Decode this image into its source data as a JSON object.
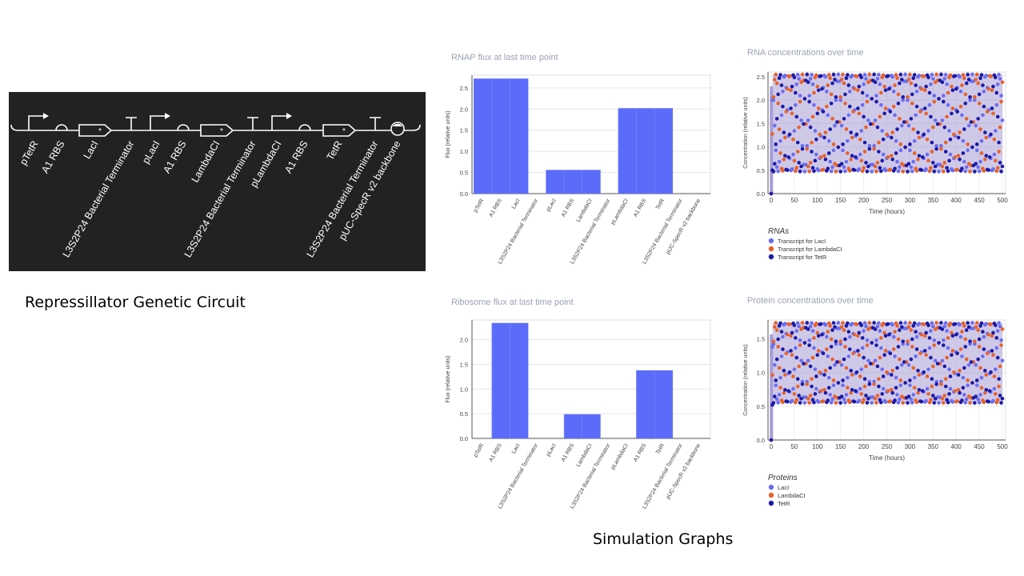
{
  "captions": {
    "circuit": "Repressillator Genetic Circuit",
    "graphs": "Simulation Graphs"
  },
  "circuit": {
    "parts": [
      {
        "type": "promoter",
        "label": "pTetR"
      },
      {
        "type": "rbs",
        "label": "A1 RBS"
      },
      {
        "type": "cds",
        "label": "LacI"
      },
      {
        "type": "terminator",
        "label": "L3S2P24 Bacterial Terminator"
      },
      {
        "type": "promoter",
        "label": "pLacI"
      },
      {
        "type": "rbs",
        "label": "A1 RBS"
      },
      {
        "type": "cds",
        "label": "LambdaCI"
      },
      {
        "type": "terminator",
        "label": "L3S2P24 Bacterial Terminator"
      },
      {
        "type": "promoter",
        "label": "pLambdaCI"
      },
      {
        "type": "rbs",
        "label": "A1 RBS"
      },
      {
        "type": "cds",
        "label": "TetR"
      },
      {
        "type": "terminator",
        "label": "L3S2P24 Bacterial Terminator"
      },
      {
        "type": "origin",
        "label": "pUC-SpecR v2 backbone"
      }
    ],
    "colors": {
      "background": "#222222",
      "glyph": "#ffffff",
      "label": "#ffffff"
    }
  },
  "colors": {
    "bar": "#5c6cfa",
    "laci": "#6a6ef0",
    "lambdaci": "#e8622a",
    "tetr": "#1a1aa8",
    "title": "#9aa3b5",
    "axis": "#555555",
    "band": "#a79cd6"
  },
  "chart_data": [
    {
      "type": "bar",
      "title": "RNAP flux at last time point",
      "ylabel": "Flux (relative units)",
      "categories": [
        "pTetR",
        "A1 RBS",
        "LacI",
        "L3S2P24 Bacterial Terminator",
        "pLacI",
        "A1 RBS",
        "LambdaCI",
        "L3S2P24 Bacterial Terminator",
        "pLambdaCI",
        "A1 RBS",
        "TetR",
        "L3S2P24 Bacterial Terminator",
        "pUC-SpecR v2 backbone"
      ],
      "values": [
        2.72,
        2.72,
        2.72,
        0,
        0.56,
        0.56,
        0.56,
        0,
        2.02,
        2.02,
        2.02,
        0,
        0
      ],
      "ylim": [
        0,
        2.8
      ],
      "yticks": [
        "0.0",
        "0.5",
        "1.0",
        "1.5",
        "2.0",
        "2.5"
      ],
      "grid": true
    },
    {
      "type": "bar",
      "title": "Ribosome flux at last time point",
      "ylabel": "Flux (relative units)",
      "categories": [
        "pTetR",
        "A1 RBS",
        "LacI",
        "L3S2P24 Bacterial Terminator",
        "pLacI",
        "A1 RBS",
        "LambdaCI",
        "L3S2P24 Bacterial Terminator",
        "pLambdaCI",
        "A1 RBS",
        "TetR",
        "L3S2P24 Bacterial Terminator",
        "pUC-SpecR v2 backbone"
      ],
      "values": [
        0,
        2.34,
        2.34,
        0,
        0,
        0.49,
        0.49,
        0,
        0,
        1.38,
        1.38,
        0,
        0
      ],
      "ylim": [
        0,
        2.4
      ],
      "yticks": [
        "0.0",
        "0.5",
        "1.0",
        "1.5",
        "2.0"
      ],
      "grid": true
    },
    {
      "type": "scatter",
      "title": "RNA concentrations over time",
      "xlabel": "Time (hours)",
      "ylabel": "Concentration (relative units)",
      "xlim": [
        0,
        500
      ],
      "ylim": [
        0,
        2.6
      ],
      "xticks": [
        "0",
        "50",
        "100",
        "150",
        "200",
        "250",
        "300",
        "350",
        "400",
        "450",
        "500"
      ],
      "yticks": [
        "0.0",
        "0.5",
        "1.0",
        "1.5",
        "2.0",
        "2.5"
      ],
      "legend_title": "RNAs",
      "legend_placement": "bottom-left",
      "oscillation": {
        "min": 0.47,
        "max": 2.55,
        "period_hours": 29
      },
      "series": [
        {
          "name": "Transcript for LacI",
          "color": "#6a6ef0",
          "phase": 0
        },
        {
          "name": "Transcript for LambdaCI",
          "color": "#e8622a",
          "phase": 0.333
        },
        {
          "name": "Transcript for TetR",
          "color": "#1a1aa8",
          "phase": 0.667
        }
      ]
    },
    {
      "type": "scatter",
      "title": "Protein concentrations over time",
      "xlabel": "Time (hours)",
      "ylabel": "Concentration (relative units)",
      "xlim": [
        0,
        500
      ],
      "ylim": [
        0,
        1.78
      ],
      "xticks": [
        "0",
        "50",
        "100",
        "150",
        "200",
        "250",
        "300",
        "350",
        "400",
        "450",
        "500"
      ],
      "yticks": [
        "0.0",
        "0.5",
        "1.0",
        "1.5"
      ],
      "legend_title": "Proteins",
      "legend_placement": "bottom-left",
      "oscillation": {
        "min": 0.55,
        "max": 1.74,
        "period_hours": 29
      },
      "series": [
        {
          "name": "LacI",
          "color": "#6a6ef0",
          "phase": 0
        },
        {
          "name": "LambdaCI",
          "color": "#e8622a",
          "phase": 0.333
        },
        {
          "name": "TetR",
          "color": "#1a1aa8",
          "phase": 0.667
        }
      ]
    }
  ]
}
